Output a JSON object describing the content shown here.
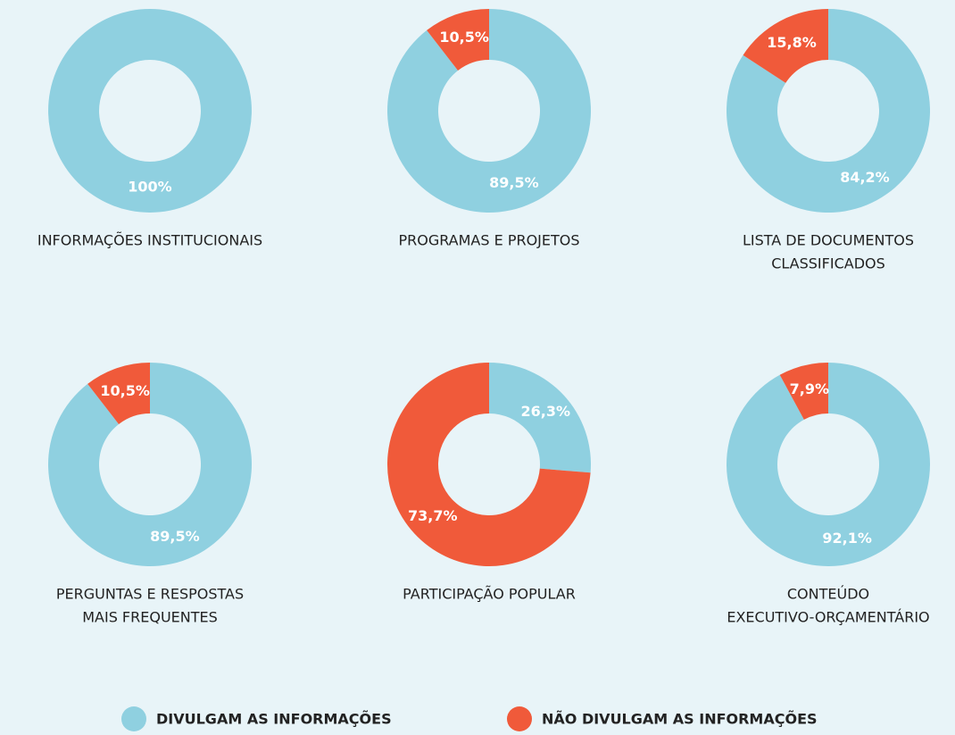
{
  "legend": {
    "labels": [
      "DIVULGAM AS INFORMAÇÕES",
      "NÃO DIVULGAM AS INFORMAÇÕES"
    ],
    "colors": [
      "#8fd0e0",
      "#f05a3a"
    ]
  },
  "chart_data": [
    {
      "type": "donut",
      "title": [
        "INFORMAÇÕES INSTITUCIONAIS"
      ],
      "values": [
        100
      ],
      "value_labels": [
        "100%"
      ]
    },
    {
      "type": "donut",
      "title": [
        "PROGRAMAS E PROJETOS"
      ],
      "values": [
        89.5,
        10.5
      ],
      "value_labels": [
        "89,5%",
        "10,5%"
      ]
    },
    {
      "type": "donut",
      "title": [
        "LISTA DE DOCUMENTOS",
        "CLASSIFICADOS"
      ],
      "values": [
        84.2,
        15.8
      ],
      "value_labels": [
        "84,2%",
        "15,8%"
      ]
    },
    {
      "type": "donut",
      "title": [
        "PERGUNTAS E RESPOSTAS",
        "MAIS FREQUENTES"
      ],
      "values": [
        89.5,
        10.5
      ],
      "value_labels": [
        "89,5%",
        "10,5%"
      ]
    },
    {
      "type": "donut",
      "title": [
        "PARTICIPAÇÃO POPULAR"
      ],
      "values": [
        26.3,
        73.7
      ],
      "value_labels": [
        "26,3%",
        "73,7%"
      ]
    },
    {
      "type": "donut",
      "title": [
        "CONTEÚDO",
        "EXECUTIVO-ORÇAMENTÁRIO"
      ],
      "values": [
        92.1,
        7.9
      ],
      "value_labels": [
        "92,1%",
        "7,9%"
      ]
    }
  ]
}
